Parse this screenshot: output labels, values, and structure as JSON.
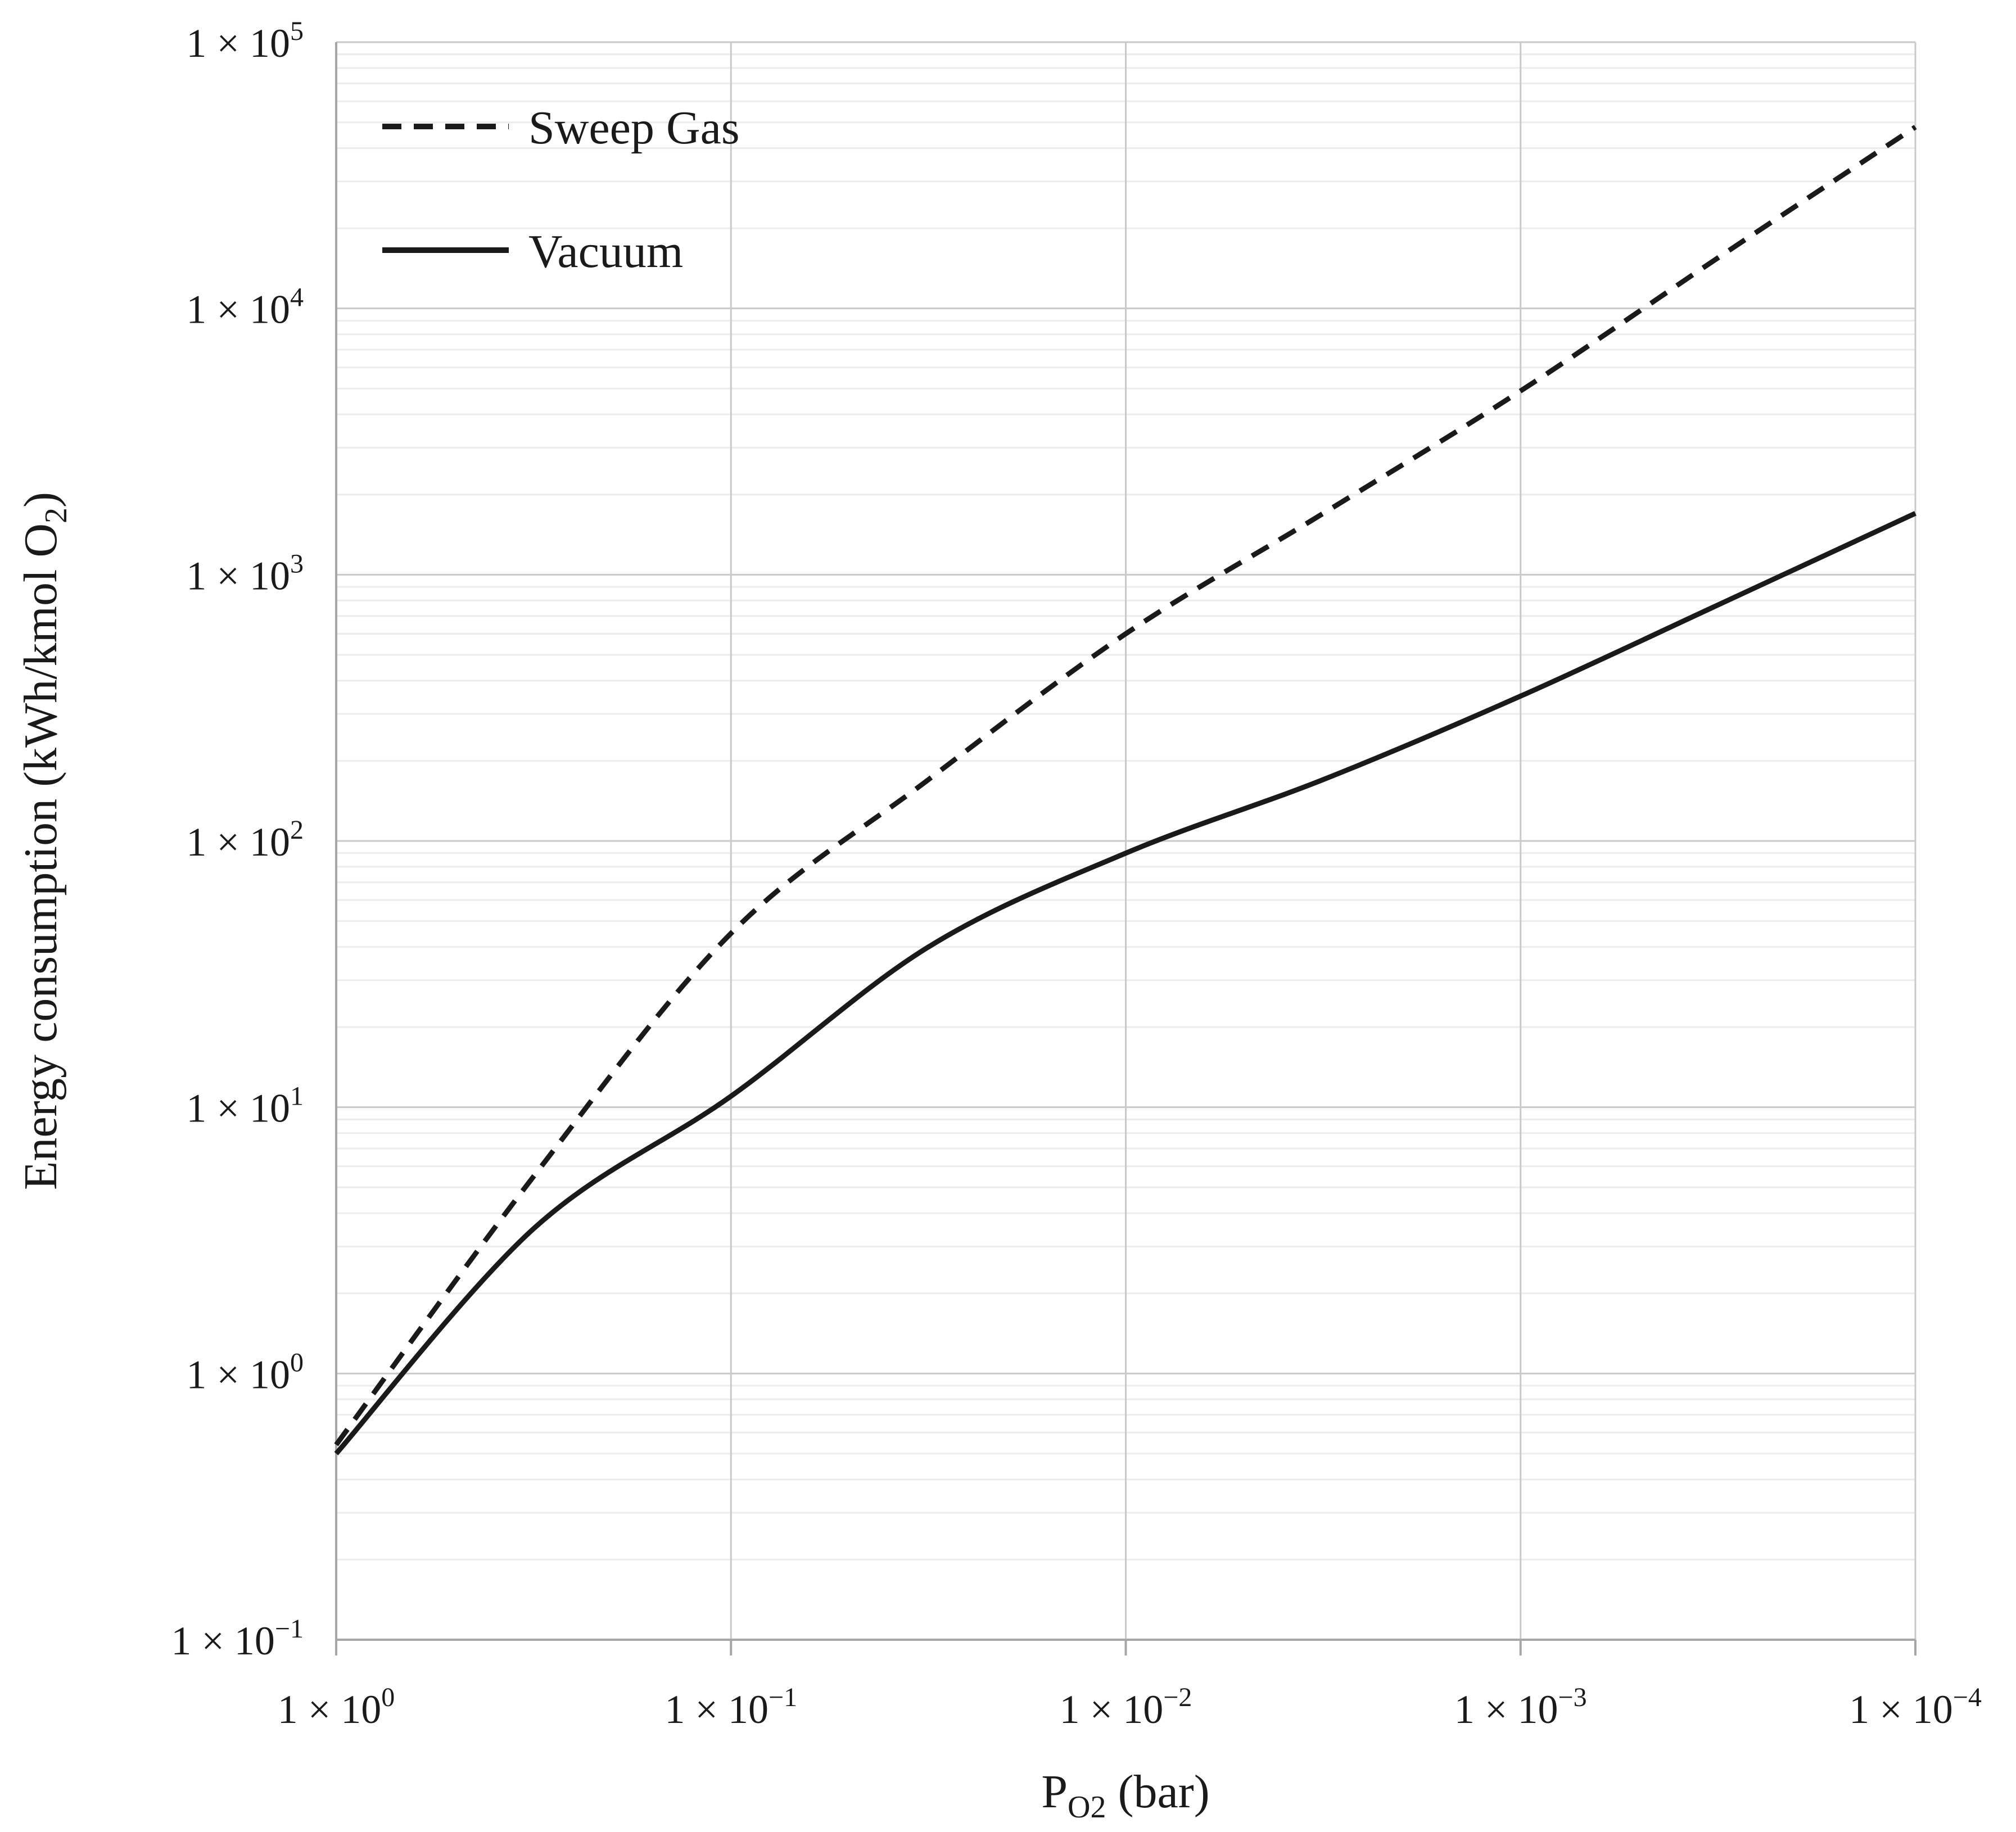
{
  "figure": {
    "background": "#ffffff",
    "text_color": "#1a1a1a",
    "line_color": "#1a1a1a",
    "axis_line_color": "#a6a6a6",
    "major_grid_color": "#c9c9c9",
    "minor_grid_color": "#ececec"
  },
  "legend": {
    "position": "top-left inside plot",
    "items": [
      {
        "label": "Sweep Gas",
        "style": "dashed"
      },
      {
        "label": "Vacuum",
        "style": "solid"
      }
    ]
  },
  "axes": {
    "x": {
      "title_parts": {
        "main": "P",
        "sub": "O2",
        "unit": " (bar)"
      },
      "scale": "log",
      "direction": "reversed",
      "ticks": [
        {
          "base": "1 × 10",
          "exp": "0",
          "v": 1
        },
        {
          "base": "1 × 10",
          "exp": "−1",
          "v": 0.1
        },
        {
          "base": "1 × 10",
          "exp": "−2",
          "v": 0.01
        },
        {
          "base": "1 × 10",
          "exp": "−3",
          "v": 0.001
        },
        {
          "base": "1 × 10",
          "exp": "−4",
          "v": 0.0001
        }
      ]
    },
    "y": {
      "title_parts": {
        "pre": "Energy consumption (kWh/kmol O",
        "sub": "2",
        "post": ")"
      },
      "scale": "log",
      "ticks": [
        {
          "base": "1 × 10",
          "exp": "5",
          "v": 100000
        },
        {
          "base": "1 × 10",
          "exp": "4",
          "v": 10000
        },
        {
          "base": "1 × 10",
          "exp": "3",
          "v": 1000
        },
        {
          "base": "1 × 10",
          "exp": "2",
          "v": 100
        },
        {
          "base": "1 × 10",
          "exp": "1",
          "v": 10
        },
        {
          "base": "1 × 10",
          "exp": "0",
          "v": 1
        },
        {
          "base": "1 × 10",
          "exp": "−1",
          "v": 0.1
        }
      ]
    }
  },
  "chart_data": {
    "type": "line",
    "title": "",
    "xlabel": "P_O2 (bar)",
    "ylabel": "Energy consumption (kWh/kmol O2)",
    "x_scale": "log (reversed, 1 to 0.0001)",
    "y_scale": "log",
    "xlim": [
      1,
      0.0001
    ],
    "ylim": [
      0.1,
      100000
    ],
    "grid": "horizontal major+minor log gridlines; vertical major decade gridlines",
    "legend_position": "top-left inside",
    "x": [
      1,
      0.316,
      0.1,
      0.0316,
      0.01,
      0.00316,
      0.001,
      0.000316,
      0.0001
    ],
    "series": [
      {
        "name": "Sweep Gas",
        "style": "dashed",
        "values": [
          0.54,
          5.5,
          45,
          170,
          600,
          1700,
          4900,
          15500,
          48000
        ]
      },
      {
        "name": "Vacuum",
        "style": "solid",
        "values": [
          0.5,
          3.5,
          11,
          40,
          90,
          170,
          350,
          770,
          1700
        ]
      }
    ]
  }
}
